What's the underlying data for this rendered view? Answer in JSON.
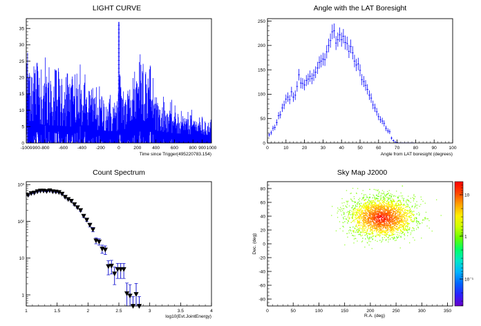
{
  "chart_data": [
    {
      "type": "histogram",
      "title": "LIGHT CURVE",
      "xlabel": "Time since Trigger(495220783.154)",
      "ylabel": "",
      "xlim": [
        -1000,
        1000
      ],
      "ylim": [
        0,
        38
      ],
      "xticks": [
        -1000,
        -900,
        -800,
        -600,
        -400,
        -200,
        0,
        200,
        400,
        600,
        800,
        900,
        1000
      ],
      "yticks": [
        0,
        5,
        10,
        15,
        20,
        25,
        30,
        35
      ],
      "bin_width": 4,
      "envelope": [
        [
          -1000,
          8
        ],
        [
          -960,
          8.5
        ],
        [
          -900,
          7.5
        ],
        [
          -800,
          6.5
        ],
        [
          -600,
          6
        ],
        [
          -400,
          5.2
        ],
        [
          -300,
          4.3
        ],
        [
          -200,
          3.8
        ],
        [
          -100,
          3.4
        ],
        [
          -30,
          3.2
        ],
        [
          -10,
          4
        ],
        [
          0,
          6
        ],
        [
          30,
          5
        ],
        [
          80,
          4
        ],
        [
          120,
          5
        ],
        [
          180,
          7
        ],
        [
          230,
          9
        ],
        [
          280,
          8.5
        ],
        [
          330,
          7
        ],
        [
          380,
          4.5
        ],
        [
          420,
          3.5
        ],
        [
          500,
          2.8
        ],
        [
          600,
          2.3
        ],
        [
          700,
          2
        ],
        [
          800,
          1.7
        ],
        [
          900,
          1.5
        ],
        [
          1000,
          1.4
        ]
      ],
      "spike": {
        "x": 0,
        "y": 37
      },
      "color": "#0000ff"
    },
    {
      "type": "errorbar",
      "title": "Angle with the LAT Boresight",
      "xlabel": "Angle from LAT boresight (degrees)",
      "ylabel": "",
      "xlim": [
        0,
        100
      ],
      "ylim": [
        0,
        255
      ],
      "xticks": [
        0,
        10,
        20,
        30,
        40,
        50,
        60,
        70,
        80,
        90,
        100
      ],
      "yticks": [
        0,
        50,
        100,
        150,
        200,
        250
      ],
      "x": [
        1,
        2,
        3,
        4,
        5,
        6,
        7,
        8,
        9,
        10,
        11,
        12,
        13,
        14,
        15,
        16,
        17,
        18,
        19,
        20,
        21,
        22,
        23,
        24,
        25,
        26,
        27,
        28,
        29,
        30,
        31,
        32,
        33,
        34,
        35,
        36,
        37,
        38,
        39,
        40,
        41,
        42,
        43,
        44,
        45,
        46,
        47,
        48,
        49,
        50,
        51,
        52,
        53,
        54,
        55,
        56,
        57,
        58,
        59,
        60,
        61,
        62,
        63,
        64,
        65,
        66,
        67,
        68,
        69,
        70,
        71,
        72,
        73,
        74,
        75,
        76,
        77,
        78,
        79
      ],
      "values": [
        17,
        21,
        30,
        32,
        42,
        56,
        58,
        72,
        78,
        90,
        94,
        89,
        105,
        94,
        98,
        116,
        140,
        123,
        122,
        119,
        128,
        131,
        137,
        132,
        139,
        145,
        154,
        165,
        168,
        172,
        171,
        187,
        200,
        210,
        228,
        230,
        205,
        212,
        222,
        212,
        219,
        206,
        204,
        188,
        198,
        185,
        168,
        160,
        162,
        149,
        130,
        126,
        118,
        110,
        98,
        92,
        78,
        72,
        64,
        54,
        48,
        45,
        40,
        30,
        25,
        23,
        10,
        5,
        2,
        1,
        0,
        0,
        0,
        0,
        0,
        0,
        0,
        0,
        0
      ],
      "color": "#0000ff"
    },
    {
      "type": "errorbar-log",
      "title": "Count Spectrum",
      "xlabel": "log10(Evt.JointEnergy)",
      "ylabel": "",
      "xlim": [
        1,
        4
      ],
      "ylog": true,
      "ylim": [
        0.5,
        1200
      ],
      "xticks": [
        1,
        1.5,
        2,
        2.5,
        3,
        3.5,
        4
      ],
      "ytick_labels": [
        "1",
        "10",
        "10²",
        "10³"
      ],
      "x": [
        1.03,
        1.08,
        1.13,
        1.18,
        1.23,
        1.28,
        1.33,
        1.38,
        1.43,
        1.48,
        1.53,
        1.58,
        1.63,
        1.68,
        1.73,
        1.78,
        1.83,
        1.88,
        1.93,
        1.98,
        2.03,
        2.08,
        2.13,
        2.18,
        2.23,
        2.28,
        2.33,
        2.38,
        2.43,
        2.48,
        2.53,
        2.58,
        2.63,
        2.68,
        2.73,
        2.78,
        2.83
      ],
      "values": [
        520,
        580,
        600,
        650,
        680,
        680,
        660,
        690,
        650,
        640,
        620,
        560,
        460,
        400,
        360,
        290,
        240,
        200,
        140,
        110,
        80,
        60,
        30,
        28,
        18,
        17,
        6,
        6.2,
        3.8,
        5,
        5,
        5,
        1.1,
        0.95,
        0.45,
        1.05,
        0.45
      ],
      "errors": [
        25,
        25,
        25,
        25,
        25,
        25,
        25,
        25,
        25,
        25,
        25,
        25,
        22,
        20,
        20,
        17,
        15,
        14,
        12,
        11,
        9,
        8,
        5.5,
        5.5,
        4.5,
        4.5,
        2.5,
        2.5,
        1.9,
        2.2,
        2.2,
        2.2,
        1,
        0.95,
        0.45,
        1,
        0.45
      ],
      "marker": "triangle-down",
      "color": "#000000",
      "error_color": "#0000cc"
    },
    {
      "type": "heatmap",
      "title": "Sky Map J2000",
      "xlabel": "R.A. (deg)",
      "ylabel": "Dec. (deg)",
      "xlim": [
        0,
        360
      ],
      "ylim": [
        -90,
        90
      ],
      "xticks": [
        0,
        50,
        100,
        150,
        200,
        250,
        300,
        350
      ],
      "yticks": [
        -80,
        -60,
        -40,
        -20,
        0,
        20,
        40,
        60,
        80
      ],
      "center": {
        "ra": 222,
        "dec": 38
      },
      "colorbar": {
        "scale": "log",
        "tick_labels": [
          "10",
          "1",
          "10⁻¹"
        ]
      }
    }
  ]
}
